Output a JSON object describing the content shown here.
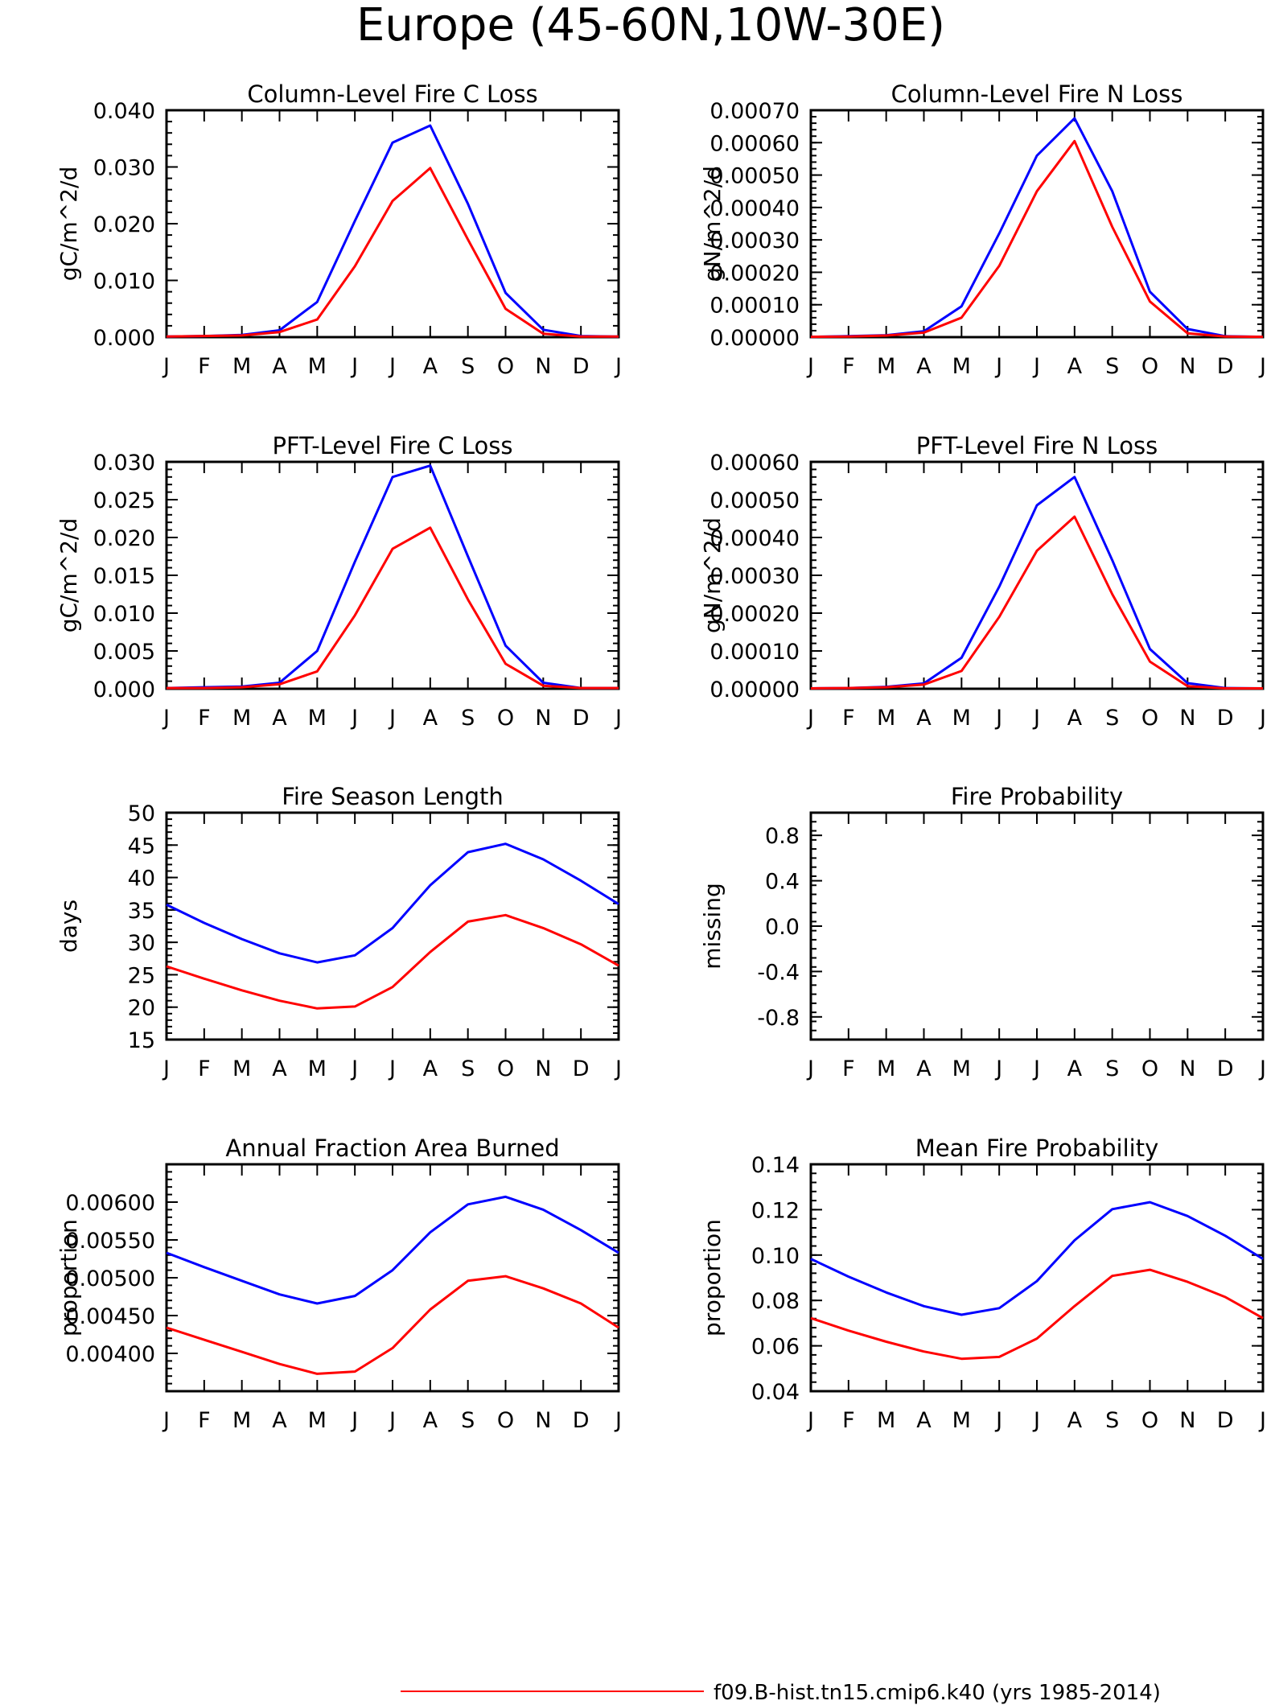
{
  "title": "Europe (45-60N,10W-30E)",
  "colors": {
    "series_a": "#0000ff",
    "series_b": "#ff0000"
  },
  "chart_data": [
    {
      "type": "line",
      "title": "Column-Level Fire C Loss",
      "ylabel": "gC/m^2/d",
      "xlabel": "",
      "x_tick_labels": [
        "J",
        "F",
        "M",
        "A",
        "M",
        "J",
        "J",
        "A",
        "S",
        "O",
        "N",
        "D",
        "J"
      ],
      "ylim": [
        0,
        0.04
      ],
      "y_ticks": [
        "0.000",
        "0.010",
        "0.020",
        "0.030",
        "0.040"
      ],
      "series": [
        {
          "color": "#0000ff",
          "values": [
            0.0001,
            0.0002,
            0.0004,
            0.0012,
            0.0062,
            0.0205,
            0.0343,
            0.0373,
            0.0235,
            0.0078,
            0.0013,
            0.0002,
            0.0001
          ]
        },
        {
          "color": "#ff0000",
          "values": [
            0.0001,
            0.0002,
            0.0003,
            0.0009,
            0.0031,
            0.0125,
            0.024,
            0.0298,
            0.0172,
            0.005,
            0.0006,
            0.0001,
            0.0001
          ]
        }
      ]
    },
    {
      "type": "line",
      "title": "Column-Level Fire N Loss",
      "ylabel": "gN/m^2/d",
      "xlabel": "",
      "x_tick_labels": [
        "J",
        "F",
        "M",
        "A",
        "M",
        "J",
        "J",
        "A",
        "S",
        "O",
        "N",
        "D",
        "J"
      ],
      "ylim": [
        0,
        0.0007
      ],
      "y_ticks": [
        "0.00000",
        "0.00010",
        "0.00020",
        "0.00030",
        "0.00040",
        "0.00050",
        "0.00060",
        "0.00070"
      ],
      "series": [
        {
          "color": "#0000ff",
          "values": [
            1e-06,
            3e-06,
            6e-06,
            1.8e-05,
            9.5e-05,
            0.00032,
            0.00056,
            0.000675,
            0.00045,
            0.00014,
            2.5e-05,
            3e-06,
            1e-06
          ]
        },
        {
          "color": "#ff0000",
          "values": [
            1e-06,
            2e-06,
            5e-06,
            1.4e-05,
            6e-05,
            0.00022,
            0.00045,
            0.000605,
            0.00034,
            0.00011,
            1.2e-05,
            2e-06,
            1e-06
          ]
        }
      ]
    },
    {
      "type": "line",
      "title": "PFT-Level Fire C Loss",
      "ylabel": "gC/m^2/d",
      "xlabel": "",
      "x_tick_labels": [
        "J",
        "F",
        "M",
        "A",
        "M",
        "J",
        "J",
        "A",
        "S",
        "O",
        "N",
        "D",
        "J"
      ],
      "ylim": [
        0,
        0.03
      ],
      "y_ticks": [
        "0.000",
        "0.005",
        "0.010",
        "0.015",
        "0.020",
        "0.025",
        "0.030"
      ],
      "series": [
        {
          "color": "#0000ff",
          "values": [
            0.0001,
            0.0002,
            0.0003,
            0.0008,
            0.005,
            0.0168,
            0.028,
            0.0295,
            0.0175,
            0.0057,
            0.0008,
            0.0001,
            0.0001
          ]
        },
        {
          "color": "#ff0000",
          "values": [
            0.0001,
            0.0001,
            0.0002,
            0.0006,
            0.0023,
            0.0097,
            0.0185,
            0.0213,
            0.0118,
            0.0033,
            0.0004,
            0.0001,
            0.0001
          ]
        }
      ]
    },
    {
      "type": "line",
      "title": "PFT-Level Fire N Loss",
      "ylabel": "gN/m^2/d",
      "xlabel": "",
      "x_tick_labels": [
        "J",
        "F",
        "M",
        "A",
        "M",
        "J",
        "J",
        "A",
        "S",
        "O",
        "N",
        "D",
        "J"
      ],
      "ylim": [
        0,
        0.0006
      ],
      "y_ticks": [
        "0.00000",
        "0.00010",
        "0.00020",
        "0.00030",
        "0.00040",
        "0.00050",
        "0.00060"
      ],
      "series": [
        {
          "color": "#0000ff",
          "values": [
            1e-06,
            2e-06,
            5e-06,
            1.4e-05,
            8.2e-05,
            0.00027,
            0.000485,
            0.00056,
            0.00034,
            0.000105,
            1.5e-05,
            2e-06,
            1e-06
          ]
        },
        {
          "color": "#ff0000",
          "values": [
            1e-06,
            2e-06,
            4e-06,
            1.1e-05,
            4.7e-05,
            0.00019,
            0.000365,
            0.000455,
            0.00025,
            7.2e-05,
            7e-06,
            1e-06,
            1e-06
          ]
        }
      ]
    },
    {
      "type": "line",
      "title": "Fire Season Length",
      "ylabel": "days",
      "xlabel": "",
      "x_tick_labels": [
        "J",
        "F",
        "M",
        "A",
        "M",
        "J",
        "J",
        "A",
        "S",
        "O",
        "N",
        "D",
        "J"
      ],
      "ylim": [
        15,
        50
      ],
      "y_ticks": [
        "15",
        "20",
        "25",
        "30",
        "35",
        "40",
        "45",
        "50"
      ],
      "series": [
        {
          "color": "#0000ff",
          "values": [
            35.8,
            33.0,
            30.5,
            28.3,
            26.9,
            28.0,
            32.2,
            38.8,
            43.9,
            45.2,
            42.8,
            39.5,
            35.9
          ]
        },
        {
          "color": "#ff0000",
          "values": [
            26.3,
            24.4,
            22.6,
            21.0,
            19.8,
            20.1,
            23.1,
            28.5,
            33.2,
            34.2,
            32.2,
            29.7,
            26.4
          ]
        }
      ]
    },
    {
      "type": "line",
      "title": "Fire Probability",
      "ylabel": "missing",
      "xlabel": "",
      "x_tick_labels": [
        "J",
        "F",
        "M",
        "A",
        "M",
        "J",
        "J",
        "A",
        "S",
        "O",
        "N",
        "D",
        "J"
      ],
      "ylim": [
        -1,
        1
      ],
      "y_ticks": [
        "-0.8",
        "-0.4",
        "0.0",
        "0.4",
        "0.8"
      ],
      "series": []
    },
    {
      "type": "line",
      "title": "Annual Fraction Area Burned",
      "ylabel": "proportion",
      "xlabel": "",
      "x_tick_labels": [
        "J",
        "F",
        "M",
        "A",
        "M",
        "J",
        "J",
        "A",
        "S",
        "O",
        "N",
        "D",
        "J"
      ],
      "ylim": [
        0.0035,
        0.0065
      ],
      "y_ticks": [
        "0.00400",
        "0.00450",
        "0.00500",
        "0.00550",
        "0.00600"
      ],
      "series": [
        {
          "color": "#0000ff",
          "values": [
            0.00533,
            0.00514,
            0.00496,
            0.00478,
            0.00466,
            0.00476,
            0.0051,
            0.0056,
            0.00597,
            0.00607,
            0.0059,
            0.00563,
            0.00533
          ]
        },
        {
          "color": "#ff0000",
          "values": [
            0.00434,
            0.00418,
            0.00402,
            0.00386,
            0.00373,
            0.00376,
            0.00407,
            0.00458,
            0.00496,
            0.00502,
            0.00486,
            0.00466,
            0.00434
          ]
        }
      ]
    },
    {
      "type": "line",
      "title": "Mean Fire Probability",
      "ylabel": "proportion",
      "xlabel": "",
      "x_tick_labels": [
        "J",
        "F",
        "M",
        "A",
        "M",
        "J",
        "J",
        "A",
        "S",
        "O",
        "N",
        "D",
        "J"
      ],
      "ylim": [
        0.04,
        0.14
      ],
      "y_ticks": [
        "0.04",
        "0.06",
        "0.08",
        "0.10",
        "0.12",
        "0.14"
      ],
      "series": [
        {
          "color": "#0000ff",
          "values": [
            0.0983,
            0.0905,
            0.0835,
            0.0775,
            0.0737,
            0.0766,
            0.0885,
            0.1065,
            0.1202,
            0.1233,
            0.1172,
            0.1085,
            0.0983
          ]
        },
        {
          "color": "#ff0000",
          "values": [
            0.0722,
            0.0667,
            0.0618,
            0.0575,
            0.0543,
            0.0551,
            0.0632,
            0.0775,
            0.0908,
            0.0935,
            0.0882,
            0.0815,
            0.0722
          ]
        }
      ]
    }
  ],
  "legend": {
    "label": "f09.B-hist.tn15.cmip6.k40 (yrs 1985-2014)",
    "color": "#ff0000"
  }
}
